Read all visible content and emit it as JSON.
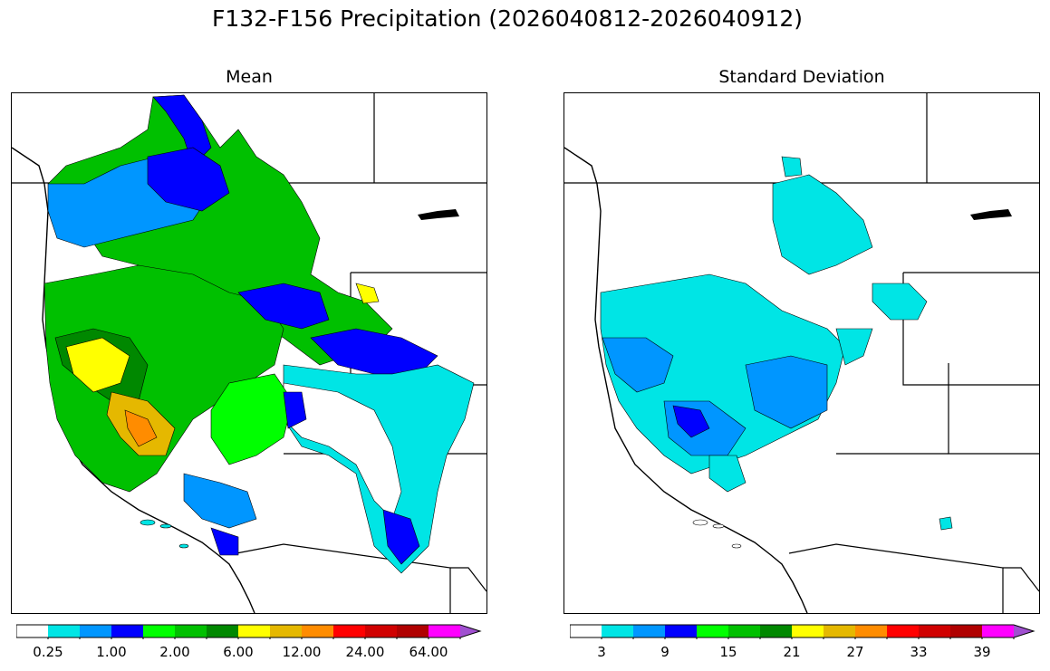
{
  "title": "F132-F156 Precipitation (2026040812-2026040912)",
  "panels": [
    {
      "title": "Mean",
      "colorbar": {
        "colors": [
          "#ffffff",
          "#00e5e5",
          "#0096ff",
          "#0000ff",
          "#00ff00",
          "#00c000",
          "#008800",
          "#ffff00",
          "#e5b800",
          "#ff8c00",
          "#ff0000",
          "#d00000",
          "#b00000",
          "#ff00ff",
          "#a050d0"
        ],
        "tick_labels": [
          "0.25",
          "1.00",
          "2.00",
          "6.00",
          "12.00",
          "24.00",
          "64.00"
        ]
      }
    },
    {
      "title": "Standard Deviation",
      "colorbar": {
        "colors": [
          "#ffffff",
          "#00e5e5",
          "#0096ff",
          "#0000ff",
          "#00ff00",
          "#00c000",
          "#008800",
          "#ffff00",
          "#e5b800",
          "#ff8c00",
          "#ff0000",
          "#d00000",
          "#b00000",
          "#ff00ff",
          "#a050d0"
        ],
        "tick_labels": [
          "3",
          "9",
          "15",
          "21",
          "27",
          "33",
          "39"
        ]
      }
    }
  ]
}
